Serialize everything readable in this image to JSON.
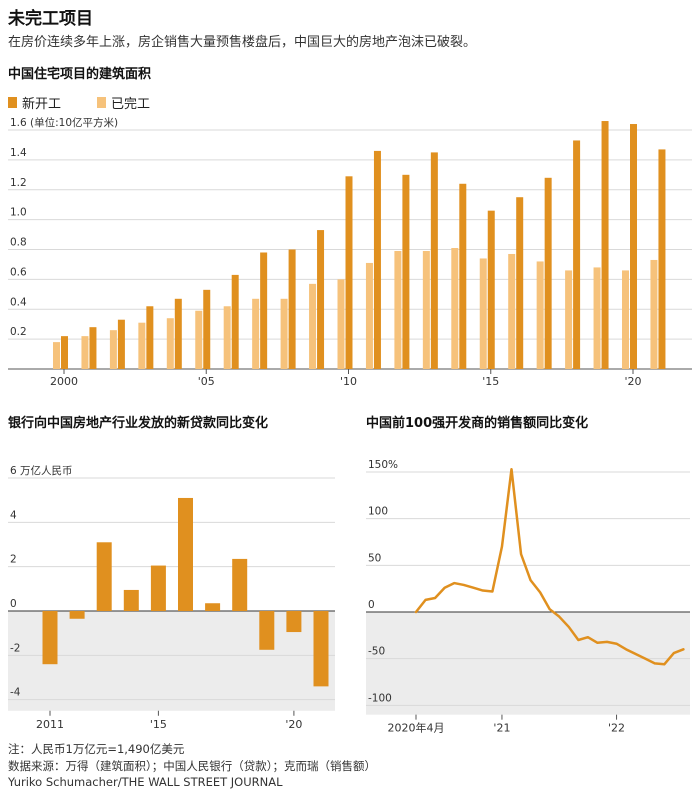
{
  "title": "未完工项目",
  "subtitle": "在房价连续多年上涨，房企销售大量预售楼盘后，中国巨大的房地产泡沫已破裂。",
  "colors": {
    "accent": "#e0901f",
    "light": "#f6c27b",
    "negative_bg": "#ececec",
    "grid": "#d9d9d9",
    "axis": "#555555"
  },
  "footer": {
    "note": "注：人民币1万亿元=1,490亿美元",
    "source": "数据来源：万得（建筑面积）；中国人民银行（贷款）；克而瑞（销售额）",
    "credit": "Yuriko Schumacher/THE WALL STREET JOURNAL"
  },
  "chart_data": [
    {
      "type": "bar",
      "title": "中国住宅项目的建筑面积",
      "ylabel": "1.6 (单位:10亿平方米)",
      "ylim": [
        0,
        1.6
      ],
      "yticks": [
        0.2,
        0.4,
        0.6,
        0.8,
        1.0,
        1.2,
        1.4,
        1.6
      ],
      "ytick_labels": [
        "0.2",
        "0.4",
        "0.6",
        "0.8",
        "1.0",
        "1.2",
        "1.4",
        "1.6 (单位:10亿平方米)"
      ],
      "x_tick_labels": [
        "2000",
        "'05",
        "'10",
        "'15",
        "'20"
      ],
      "x_tick_years": [
        2000,
        2005,
        2010,
        2015,
        2020
      ],
      "categories": [
        2000,
        2001,
        2002,
        2003,
        2004,
        2005,
        2006,
        2007,
        2008,
        2009,
        2010,
        2011,
        2012,
        2013,
        2014,
        2015,
        2016,
        2017,
        2018,
        2019,
        2020,
        2021
      ],
      "series": [
        {
          "name": "新开工",
          "color": "#e0901f",
          "values": [
            0.22,
            0.28,
            0.33,
            0.42,
            0.47,
            0.53,
            0.63,
            0.78,
            0.8,
            0.93,
            1.29,
            1.46,
            1.3,
            1.45,
            1.24,
            1.06,
            1.15,
            1.28,
            1.53,
            1.66,
            1.64,
            1.47
          ]
        },
        {
          "name": "已完工",
          "color": "#f6c27b",
          "values": [
            0.18,
            0.22,
            0.26,
            0.31,
            0.34,
            0.39,
            0.42,
            0.47,
            0.47,
            0.57,
            0.6,
            0.71,
            0.79,
            0.79,
            0.81,
            0.74,
            0.77,
            0.72,
            0.66,
            0.68,
            0.66,
            0.73
          ]
        }
      ]
    },
    {
      "type": "bar",
      "title": "银行向中国房地产行业发放的新贷款同比变化",
      "ylabel": "6 万亿人民币",
      "ylim": [
        -4.5,
        6
      ],
      "yticks": [
        -4,
        -2,
        0,
        2,
        4,
        6
      ],
      "ytick_labels": [
        "-4",
        "-2",
        "0",
        "2",
        "4",
        "6 万亿人民币"
      ],
      "x_tick_labels": [
        "2011",
        "'15",
        "'20"
      ],
      "x_tick_years": [
        2011,
        2015,
        2020
      ],
      "categories": [
        2011,
        2012,
        2013,
        2014,
        2015,
        2016,
        2017,
        2018,
        2019,
        2020,
        2021
      ],
      "values": [
        -2.4,
        -0.35,
        3.1,
        0.95,
        2.05,
        5.1,
        0.35,
        2.35,
        -1.75,
        -0.95,
        -3.4
      ]
    },
    {
      "type": "line",
      "title": "中国前100强开发商的销售额同比变化",
      "ylim": [
        -100,
        150
      ],
      "yticks": [
        -100,
        -50,
        0,
        50,
        100,
        150
      ],
      "ytick_labels": [
        "-100",
        "-50",
        "0",
        "50",
        "100",
        "150%"
      ],
      "x_tick_labels": [
        "2020年4月",
        "'21",
        "'22"
      ],
      "x_tick_index": [
        0,
        9,
        21
      ],
      "x": [
        "2020-04",
        "2020-05",
        "2020-06",
        "2020-07",
        "2020-08",
        "2020-09",
        "2020-10",
        "2020-11",
        "2020-12",
        "2021-01",
        "2021-02",
        "2021-03",
        "2021-04",
        "2021-05",
        "2021-06",
        "2021-07",
        "2021-08",
        "2021-09",
        "2021-10",
        "2021-11",
        "2021-12",
        "2022-01",
        "2022-02",
        "2022-03",
        "2022-04",
        "2022-05",
        "2022-06",
        "2022-07",
        "2022-08"
      ],
      "values": [
        0,
        13,
        15,
        26,
        31,
        29,
        26,
        23,
        22,
        70,
        153,
        62,
        34,
        21,
        3,
        -5,
        -16,
        -30,
        -27,
        -33,
        -32,
        -34,
        -40,
        -45,
        -50,
        -55,
        -56,
        -44,
        -40
      ]
    }
  ]
}
